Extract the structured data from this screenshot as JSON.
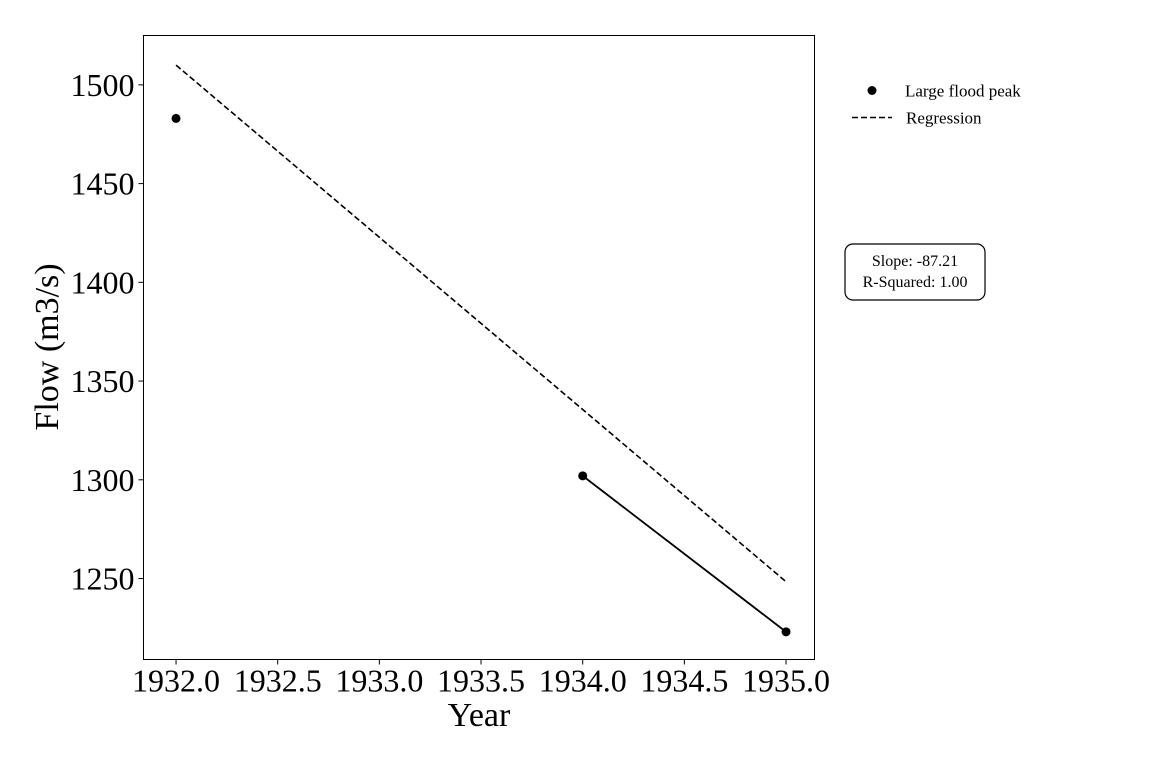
{
  "chart_data": {
    "type": "scatter",
    "title": "",
    "xlabel": "Year",
    "ylabel": "Flow (m3/s)",
    "xlim": [
      1931.84,
      1935.14
    ],
    "ylim": [
      1209,
      1525
    ],
    "xticks": [
      1932.0,
      1932.5,
      1933.0,
      1933.5,
      1934.0,
      1934.5,
      1935.0
    ],
    "xtick_labels": [
      "1932.0",
      "1932.5",
      "1933.0",
      "1933.5",
      "1934.0",
      "1934.5",
      "1935.0"
    ],
    "yticks": [
      1250,
      1300,
      1350,
      1400,
      1450,
      1500
    ],
    "ytick_labels": [
      "1250",
      "1300",
      "1350",
      "1400",
      "1450",
      "1500"
    ],
    "grid": false,
    "series": [
      {
        "name": "Large flood peak",
        "kind": "scatter",
        "color": "#000000",
        "points": [
          {
            "x": 1932,
            "y": 1483
          },
          {
            "x": 1934,
            "y": 1302
          },
          {
            "x": 1935,
            "y": 1223
          }
        ]
      },
      {
        "kind": "line",
        "style": "solid",
        "color": "#000000",
        "points": [
          {
            "x": 1934,
            "y": 1302
          },
          {
            "x": 1935,
            "y": 1223
          }
        ]
      },
      {
        "name": "Regression",
        "kind": "line",
        "style": "dashed",
        "color": "#000000",
        "points": [
          {
            "x": 1932,
            "y": 1510
          },
          {
            "x": 1935,
            "y": 1248.4
          }
        ]
      }
    ],
    "legend": {
      "placement": "outside-right-top",
      "entries": [
        {
          "label": "Large flood peak",
          "marker": "dot"
        },
        {
          "label": "Regression",
          "marker": "dashed-line"
        }
      ]
    },
    "annotations": [
      {
        "lines": [
          "Slope: -87.21",
          "R-Squared: 1.00"
        ]
      }
    ]
  }
}
